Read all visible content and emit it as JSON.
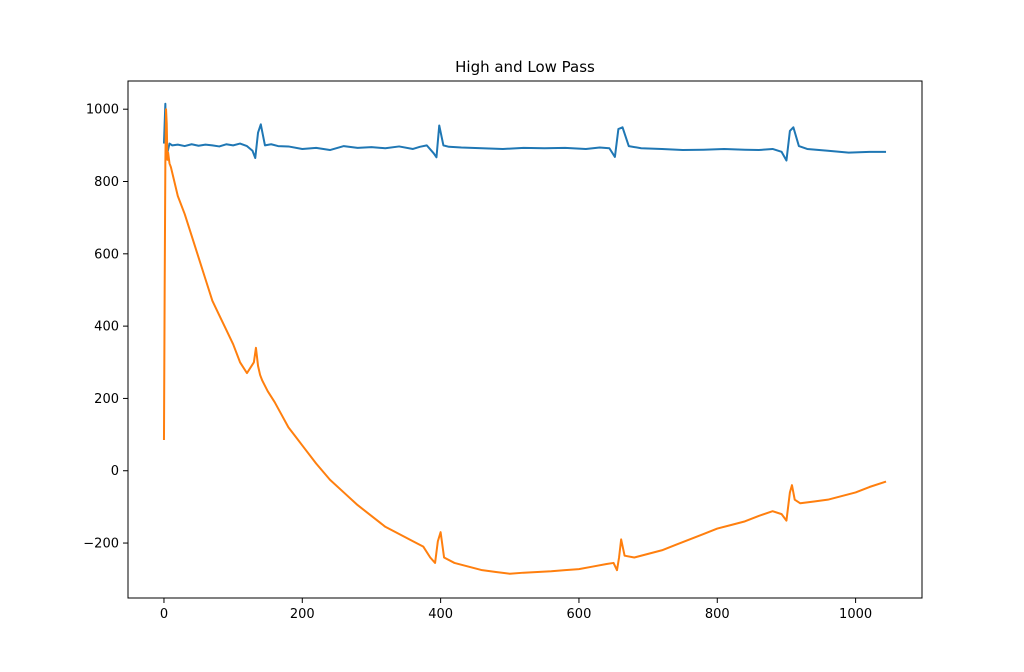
{
  "chart_data": {
    "type": "line",
    "title": "High and Low Pass",
    "xlabel": "",
    "ylabel": "",
    "xlim": [
      -52,
      1096
    ],
    "ylim": [
      -352,
      1078
    ],
    "xticks": [
      0,
      200,
      400,
      600,
      800,
      1000
    ],
    "yticks": [
      -200,
      0,
      200,
      400,
      600,
      800,
      1000
    ],
    "xtick_labels": [
      "0",
      "200",
      "400",
      "600",
      "800",
      "1000"
    ],
    "ytick_labels": [
      "−200",
      "0",
      "200",
      "400",
      "600",
      "800",
      "1000"
    ],
    "grid": false,
    "series": [
      {
        "color": "#1f77b4",
        "x": [
          0,
          2,
          3,
          5,
          8,
          12,
          20,
          30,
          40,
          50,
          60,
          70,
          80,
          90,
          100,
          110,
          120,
          128,
          132,
          136,
          140,
          146,
          155,
          165,
          180,
          200,
          220,
          240,
          260,
          280,
          300,
          320,
          340,
          360,
          370,
          380,
          390,
          394,
          398,
          404,
          412,
          430,
          460,
          490,
          520,
          550,
          580,
          610,
          630,
          644,
          652,
          657,
          663,
          672,
          690,
          720,
          750,
          780,
          810,
          840,
          860,
          880,
          893,
          900,
          905,
          910,
          918,
          930,
          960,
          990,
          1020,
          1044
        ],
        "y": [
          905,
          1015,
          900,
          880,
          905,
          900,
          902,
          898,
          903,
          899,
          902,
          900,
          897,
          903,
          900,
          905,
          898,
          885,
          865,
          935,
          958,
          900,
          903,
          898,
          897,
          890,
          893,
          887,
          898,
          893,
          895,
          892,
          897,
          890,
          896,
          900,
          878,
          867,
          955,
          900,
          896,
          894,
          892,
          890,
          893,
          892,
          893,
          890,
          894,
          892,
          868,
          945,
          950,
          898,
          892,
          890,
          887,
          888,
          890,
          888,
          887,
          890,
          882,
          858,
          940,
          950,
          898,
          890,
          885,
          880,
          882,
          882
        ]
      },
      {
        "color": "#ff7f0e",
        "x": [
          0,
          1,
          2,
          3,
          4,
          5,
          6,
          8,
          10,
          15,
          20,
          30,
          40,
          50,
          60,
          70,
          80,
          90,
          100,
          110,
          120,
          130,
          133,
          136,
          139,
          142,
          150,
          160,
          170,
          180,
          190,
          200,
          220,
          240,
          260,
          280,
          300,
          320,
          340,
          360,
          375,
          385,
          392,
          396,
          400,
          405,
          420,
          440,
          460,
          480,
          500,
          520,
          540,
          560,
          580,
          600,
          620,
          640,
          650,
          655,
          658,
          661,
          666,
          680,
          700,
          720,
          740,
          760,
          780,
          800,
          820,
          840,
          860,
          880,
          893,
          900,
          905,
          908,
          912,
          920,
          940,
          960,
          980,
          1000,
          1020,
          1044
        ],
        "y": [
          85,
          500,
          850,
          1000,
          960,
          860,
          880,
          850,
          840,
          800,
          760,
          710,
          650,
          590,
          530,
          470,
          430,
          390,
          350,
          300,
          270,
          300,
          340,
          290,
          265,
          250,
          220,
          190,
          155,
          120,
          95,
          70,
          20,
          -25,
          -60,
          -95,
          -125,
          -155,
          -175,
          -195,
          -210,
          -240,
          -255,
          -195,
          -170,
          -240,
          -255,
          -265,
          -275,
          -280,
          -285,
          -282,
          -280,
          -278,
          -275,
          -272,
          -265,
          -258,
          -255,
          -275,
          -240,
          -190,
          -235,
          -240,
          -230,
          -220,
          -205,
          -190,
          -175,
          -160,
          -150,
          -140,
          -125,
          -112,
          -120,
          -138,
          -60,
          -40,
          -80,
          -90,
          -85,
          -80,
          -70,
          -60,
          -45,
          -30
        ]
      }
    ]
  }
}
